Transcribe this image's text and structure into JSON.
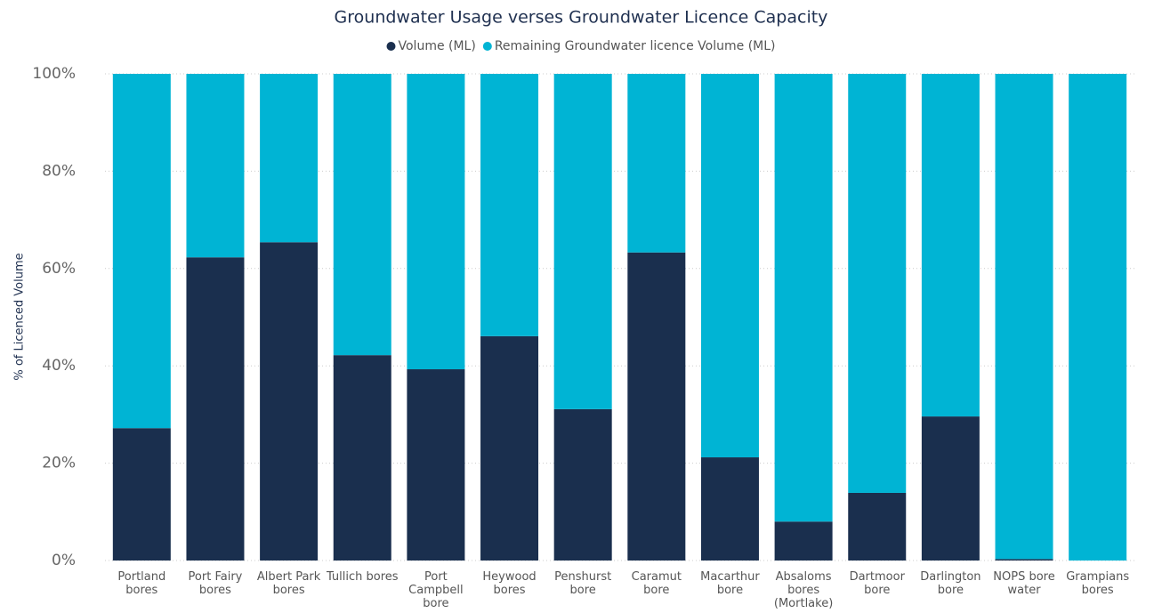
{
  "chart_data": {
    "type": "stacked_bar_percent",
    "title": "Groundwater Usage verses Groundwater Licence Capacity",
    "y_label": "% of Licenced Volume",
    "categories": [
      "Portland bores",
      "Port Fairy bores",
      "Albert Park bores",
      "Tullich bores",
      "Port Campbell bore",
      "Heywood bores",
      "Penshurst bore",
      "Caramut bore",
      "Macarthur bore",
      "Absaloms bores (Mortlake)",
      "Dartmoor bore",
      "Darlington bore",
      "NOPS bore water",
      "Grampians bores"
    ],
    "series": [
      {
        "name": "Volume (ML)",
        "color": "#1a2f4e",
        "values": [
          27.2,
          62.3,
          65.4,
          42.2,
          39.3,
          46.1,
          31.1,
          63.3,
          21.2,
          8.0,
          13.9,
          29.6,
          0.3,
          0
        ]
      },
      {
        "name": "Remaining Groundwater licence Volume (ML)",
        "color": "#00b4d4",
        "values": [
          72.8,
          37.7,
          34.6,
          57.8,
          60.7,
          53.9,
          68.9,
          36.7,
          78.8,
          92.0,
          86.1,
          70.4,
          99.7,
          100
        ]
      }
    ],
    "ylim": [
      0,
      100
    ],
    "yticks": [
      {
        "value": 0,
        "label": "0%"
      },
      {
        "value": 20,
        "label": "20%"
      },
      {
        "value": 40,
        "label": "40%"
      },
      {
        "value": 60,
        "label": "60%"
      },
      {
        "value": 80,
        "label": "80%"
      },
      {
        "value": 100,
        "label": "100%"
      }
    ],
    "grid": true,
    "legend": "top"
  }
}
